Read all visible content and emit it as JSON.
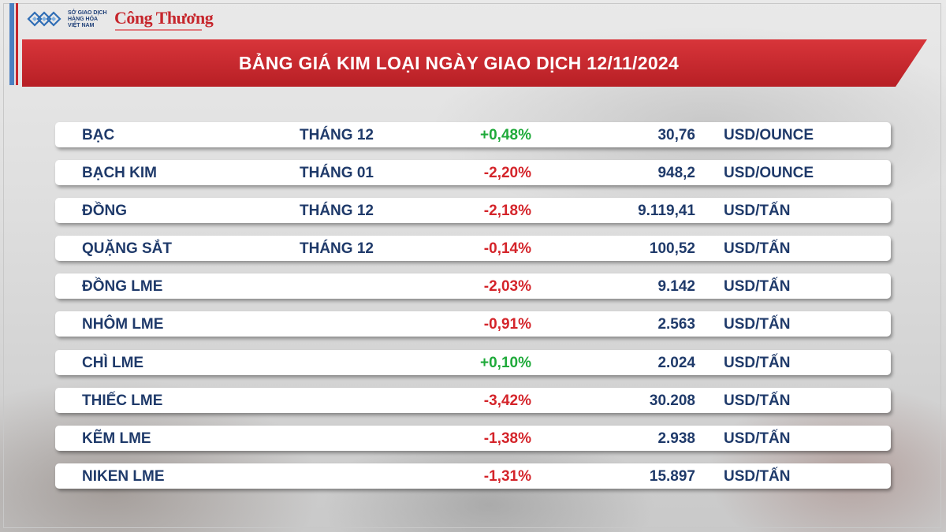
{
  "header": {
    "org_lines": [
      "SỞ GIAO DỊCH",
      "HÀNG HÓA",
      "VIỆT NAM"
    ],
    "brand": "Công Thương",
    "title": "BẢNG GIÁ KIM LOẠI NGÀY GIAO DỊCH 12/11/2024",
    "banner_color": "#c6262c"
  },
  "colors": {
    "up": "#1faa3a",
    "down": "#d4242a",
    "text": "#1f3a6a"
  },
  "rows": [
    {
      "name": "BẠC",
      "month": "THÁNG 12",
      "change": "+0,48%",
      "direction": "up",
      "price": "30,76",
      "unit": "USD/OUNCE"
    },
    {
      "name": "BẠCH KIM",
      "month": "THÁNG 01",
      "change": "-2,20%",
      "direction": "down",
      "price": "948,2",
      "unit": "USD/OUNCE"
    },
    {
      "name": "ĐỒNG",
      "month": "THÁNG 12",
      "change": "-2,18%",
      "direction": "down",
      "price": "9.119,41",
      "unit": "USD/TẤN"
    },
    {
      "name": "QUẶNG SẮT",
      "month": "THÁNG 12",
      "change": "-0,14%",
      "direction": "down",
      "price": "100,52",
      "unit": "USD/TẤN"
    },
    {
      "name": "ĐỒNG LME",
      "month": "",
      "change": "-2,03%",
      "direction": "down",
      "price": "9.142",
      "unit": "USD/TẤN"
    },
    {
      "name": "NHÔM LME",
      "month": "",
      "change": "-0,91%",
      "direction": "down",
      "price": "2.563",
      "unit": "USD/TẤN"
    },
    {
      "name": "CHÌ LME",
      "month": "",
      "change": "+0,10%",
      "direction": "up",
      "price": "2.024",
      "unit": "USD/TẤN"
    },
    {
      "name": "THIẾC LME",
      "month": "",
      "change": "-3,42%",
      "direction": "down",
      "price": "30.208",
      "unit": "USD/TẤN"
    },
    {
      "name": "KẼM LME",
      "month": "",
      "change": "-1,38%",
      "direction": "down",
      "price": "2.938",
      "unit": "USD/TẤN"
    },
    {
      "name": "NIKEN LME",
      "month": "",
      "change": "-1,31%",
      "direction": "down",
      "price": "15.897",
      "unit": "USD/TẤN"
    }
  ]
}
